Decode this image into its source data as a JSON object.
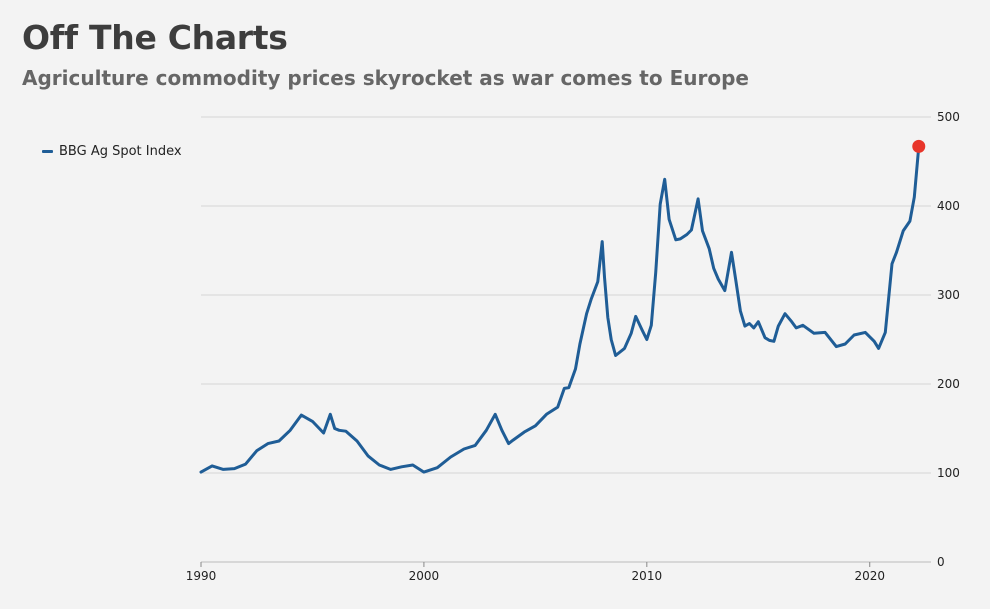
{
  "header": {
    "title": "Off The Charts",
    "subtitle": "Agriculture commodity prices skyrocket as war comes to Europe"
  },
  "legend": {
    "label": "BBG Ag  Spot Index"
  },
  "colors": {
    "line": "#1f5d96",
    "endpoint": "#e8352a",
    "grid": "#d5d5d5",
    "background": "#f3f3f3"
  },
  "chart_data": {
    "type": "line",
    "title": "",
    "xlabel": "",
    "ylabel": "",
    "xlim": [
      1990,
      2022.3
    ],
    "ylim": [
      0,
      500
    ],
    "x_ticks": [
      1990,
      2000,
      2010,
      2020
    ],
    "y_ticks": [
      0,
      100,
      200,
      300,
      400,
      500
    ],
    "y_axis_side": "right",
    "grid": "horizontal",
    "legend_position": "top-left",
    "series": [
      {
        "name": "BBG Ag  Spot Index",
        "x": [
          1990.0,
          1990.5,
          1991.0,
          1991.5,
          1992.0,
          1992.5,
          1993.0,
          1993.5,
          1994.0,
          1994.5,
          1995.0,
          1995.5,
          1995.8,
          1996.0,
          1996.2,
          1996.5,
          1997.0,
          1997.5,
          1998.0,
          1998.5,
          1999.0,
          1999.5,
          2000.0,
          2000.6,
          2001.2,
          2001.8,
          2002.3,
          2002.8,
          2003.2,
          2003.5,
          2003.8,
          2004.0,
          2004.5,
          2005.0,
          2005.5,
          2006.0,
          2006.3,
          2006.5,
          2006.8,
          2007.0,
          2007.3,
          2007.5,
          2007.8,
          2008.0,
          2008.1,
          2008.25,
          2008.4,
          2008.6,
          2009.0,
          2009.3,
          2009.5,
          2009.8,
          2010.0,
          2010.2,
          2010.4,
          2010.6,
          2010.8,
          2011.0,
          2011.3,
          2011.5,
          2011.8,
          2012.0,
          2012.3,
          2012.5,
          2012.8,
          2013.0,
          2013.2,
          2013.5,
          2013.8,
          2014.0,
          2014.2,
          2014.4,
          2014.6,
          2014.8,
          2015.0,
          2015.3,
          2015.5,
          2015.7,
          2015.9,
          2016.2,
          2016.5,
          2016.7,
          2017.0,
          2017.5,
          2018.0,
          2018.5,
          2018.9,
          2019.3,
          2019.8,
          2020.2,
          2020.4,
          2020.7,
          2021.0,
          2021.2,
          2021.5,
          2021.8,
          2022.0,
          2022.2
        ],
        "values": [
          101,
          108,
          104,
          105,
          110,
          125,
          133,
          136,
          148,
          165,
          158,
          145,
          166,
          150,
          148,
          147,
          136,
          119,
          109,
          104,
          107,
          109,
          101,
          106,
          118,
          127,
          131,
          148,
          166,
          148,
          133,
          137,
          146,
          153,
          166,
          174,
          195,
          196,
          217,
          245,
          279,
          295,
          315,
          360,
          320,
          275,
          250,
          232,
          240,
          257,
          276,
          260,
          250,
          266,
          325,
          402,
          430,
          385,
          362,
          363,
          368,
          373,
          408,
          372,
          352,
          330,
          318,
          305,
          348,
          315,
          282,
          265,
          268,
          263,
          270,
          252,
          249,
          248,
          265,
          279,
          270,
          263,
          266,
          257,
          258,
          242,
          245,
          255,
          258,
          248,
          240,
          258,
          335,
          348,
          372,
          383,
          410,
          467
        ]
      }
    ]
  }
}
